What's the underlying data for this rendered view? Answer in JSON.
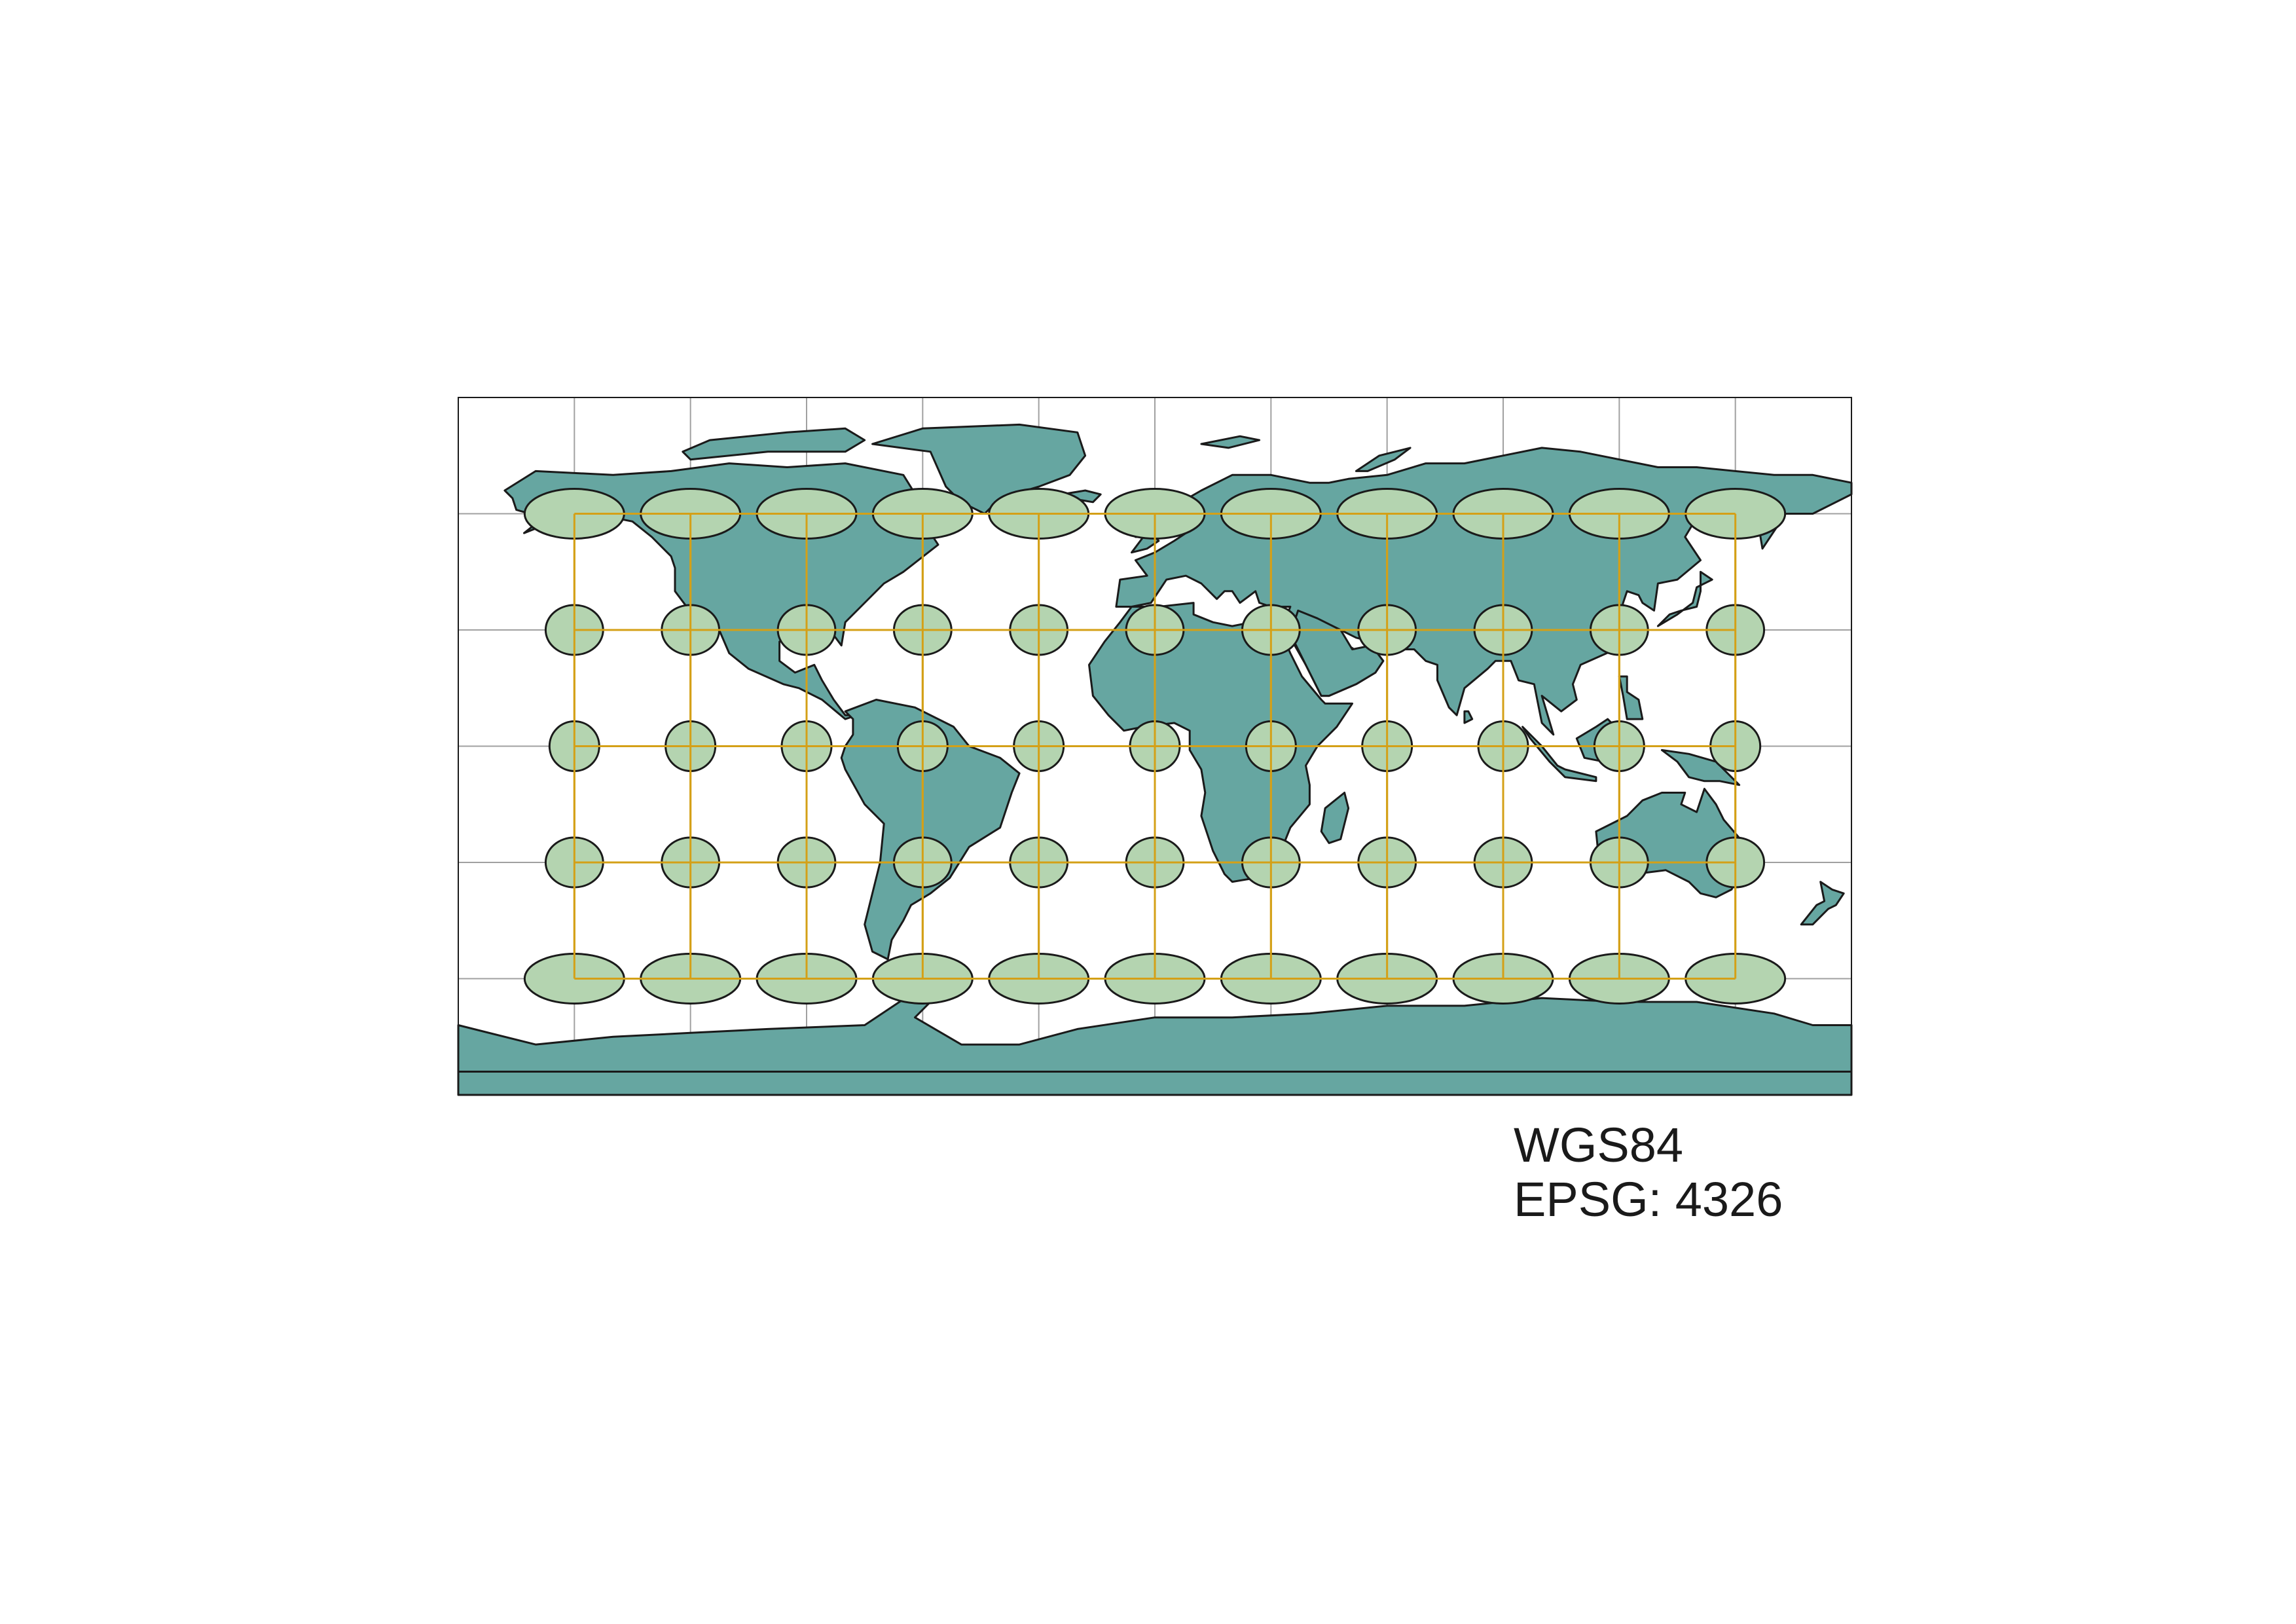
{
  "map": {
    "projection": "plate carree (equirectangular)",
    "extent": {
      "lon": [
        -180,
        180
      ],
      "lat": [
        -90,
        90
      ]
    },
    "graticule": {
      "lon_step_deg": 30,
      "lat_step_deg": 30,
      "color": "#a0a0a0"
    },
    "tissot": {
      "centers_lon": [
        -150,
        -120,
        -90,
        -60,
        -30,
        0,
        30,
        60,
        90,
        120,
        150
      ],
      "centers_lat": [
        60,
        30,
        0,
        -30,
        -60
      ],
      "grid_line_color": "#d4a017",
      "fill": "#b4d4b0",
      "stroke": "#1a1a1a"
    },
    "land_fill": "#66a6a1",
    "land_stroke": "#1a1a1a",
    "frame_color": "#1a1a1a"
  },
  "labels": {
    "crs_name": "WGS84",
    "crs_code": "EPSG: 4326"
  }
}
